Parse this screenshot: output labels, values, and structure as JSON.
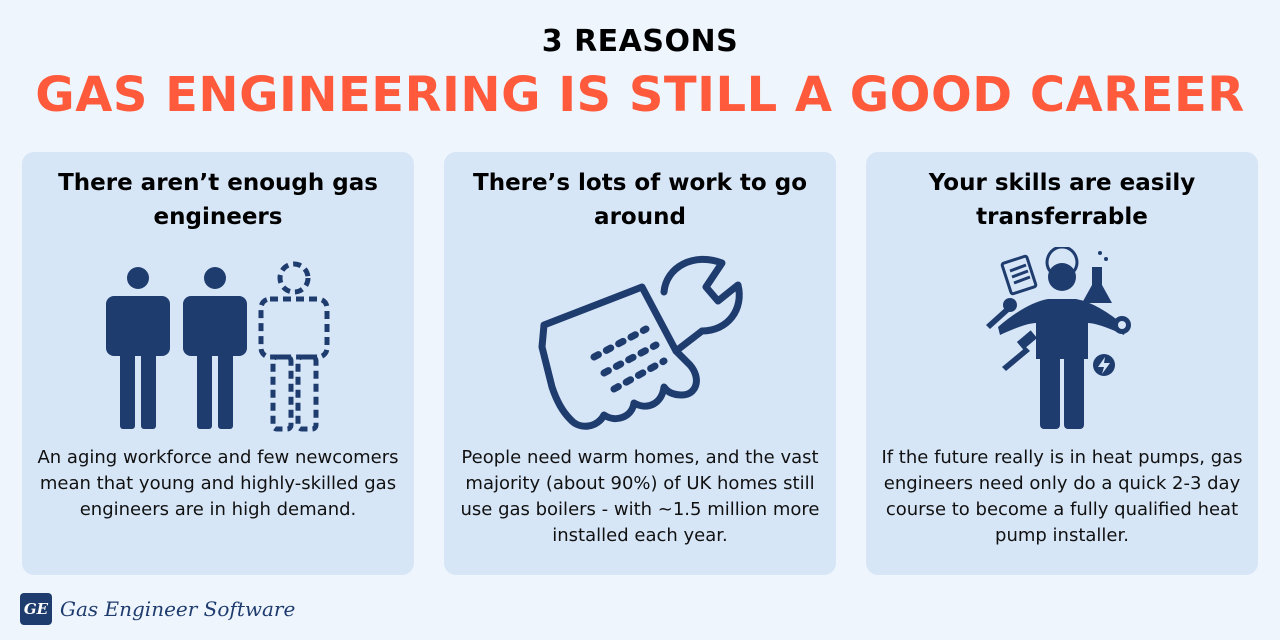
{
  "header": {
    "kicker": "3 REASONS",
    "headline": "GAS ENGINEERING IS STILL A GOOD CAREER"
  },
  "cards": [
    {
      "title": "There aren’t enough gas engineers",
      "body": "An aging workforce and few newcomers mean that young and highly-skilled gas engineers are in high demand.",
      "icon": "people-icon"
    },
    {
      "title": "There’s lots of work to go around",
      "body": "People need warm homes, and the vast majority (about 90%) of UK homes still use gas boilers - with ~1.5 million more installed each year.",
      "icon": "hand-wrench-icon"
    },
    {
      "title": "Your skills are easily transferrable",
      "body": "If the future really is in heat pumps, gas engineers need only do a quick 2-3 day course to become a fully qualified heat pump installer.",
      "icon": "multi-skill-person-icon"
    }
  ],
  "brand": {
    "mark": "GE",
    "name": "Gas Engineer Software"
  },
  "colors": {
    "background": "#eef5fd",
    "card": "#d7e6f7",
    "accent": "#ff5a3c",
    "navy": "#1f3c6e"
  }
}
